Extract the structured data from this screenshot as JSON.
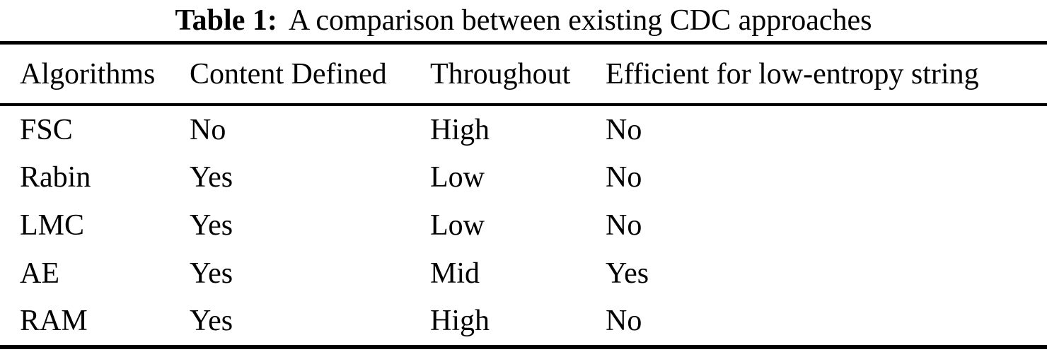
{
  "caption": {
    "label": "Table 1:",
    "text": "A comparison between existing CDC approaches"
  },
  "table": {
    "columns": [
      "Algorithms",
      "Content Defined",
      "Throughout",
      "Efficient for low-entropy string"
    ],
    "rows": [
      {
        "algorithm": "FSC",
        "content_defined": "No",
        "throughout": "High",
        "efficient_low_entropy": "No"
      },
      {
        "algorithm": "Rabin",
        "content_defined": "Yes",
        "throughout": "Low",
        "efficient_low_entropy": "No"
      },
      {
        "algorithm": "LMC",
        "content_defined": "Yes",
        "throughout": "Low",
        "efficient_low_entropy": "No"
      },
      {
        "algorithm": "AE",
        "content_defined": "Yes",
        "throughout": "Mid",
        "efficient_low_entropy": "Yes"
      },
      {
        "algorithm": "RAM",
        "content_defined": "Yes",
        "throughout": "High",
        "efficient_low_entropy": "No"
      }
    ]
  },
  "colors": {
    "background": "#ffffff",
    "text": "#000000",
    "rule": "#000000"
  }
}
